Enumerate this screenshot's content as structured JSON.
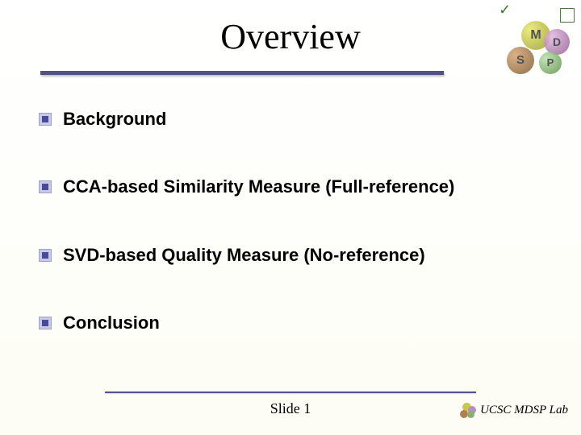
{
  "title": "Overview",
  "title_rule_color": "#515186",
  "bullets": [
    {
      "text": "Background"
    },
    {
      "text": "CCA-based Similarity Measure (Full-reference)"
    },
    {
      "text": "SVD-based Quality Measure (No-reference)"
    },
    {
      "text": "Conclusion"
    }
  ],
  "logo_letters": {
    "m": "M",
    "d": "D",
    "s": "S",
    "p": "P"
  },
  "footer": {
    "slide_label": "Slide 1",
    "lab_text": "UCSC MDSP Lab"
  },
  "colors": {
    "background": "#ffffff",
    "text": "#000000",
    "rule": "#515186",
    "bullet_outer": "#c8c8e8",
    "bullet_inner": "#4a4a9a"
  },
  "fonts": {
    "title_family": "Georgia",
    "title_size_pt": 44,
    "body_family": "Verdana",
    "body_size_pt": 22,
    "body_weight": "bold",
    "footer_size_pt": 18
  }
}
